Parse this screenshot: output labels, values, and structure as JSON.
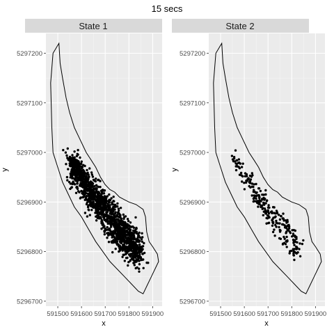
{
  "chart_data": {
    "type": "scatter",
    "title": "15 secs",
    "xlabel": "x",
    "ylabel": "y",
    "xlim": [
      591450,
      591940
    ],
    "ylim": [
      5296690,
      5297240
    ],
    "xticks": [
      591500,
      591600,
      591700,
      591800,
      591900
    ],
    "yticks": [
      5296700,
      5296800,
      5296900,
      5297000,
      5297100,
      5297200
    ],
    "grid": true,
    "boundary": [
      [
        591505,
        5297220
      ],
      [
        591480,
        5297200
      ],
      [
        591470,
        5297140
      ],
      [
        591475,
        5297050
      ],
      [
        591480,
        5297000
      ],
      [
        591500,
        5296970
      ],
      [
        591520,
        5296940
      ],
      [
        591545,
        5296915
      ],
      [
        591570,
        5296890
      ],
      [
        591600,
        5296870
      ],
      [
        591630,
        5296845
      ],
      [
        591660,
        5296820
      ],
      [
        591690,
        5296800
      ],
      [
        591720,
        5296780
      ],
      [
        591750,
        5296765
      ],
      [
        591780,
        5296750
      ],
      [
        591810,
        5296735
      ],
      [
        591840,
        5296720
      ],
      [
        591860,
        5296715
      ],
      [
        591875,
        5296730
      ],
      [
        591895,
        5296750
      ],
      [
        591915,
        5296770
      ],
      [
        591925,
        5296780
      ],
      [
        591920,
        5296795
      ],
      [
        591900,
        5296810
      ],
      [
        591885,
        5296820
      ],
      [
        591875,
        5296840
      ],
      [
        591870,
        5296870
      ],
      [
        591860,
        5296885
      ],
      [
        591830,
        5296895
      ],
      [
        591800,
        5296900
      ],
      [
        591780,
        5296905
      ],
      [
        591760,
        5296910
      ],
      [
        591740,
        5296920
      ],
      [
        591720,
        5296925
      ],
      [
        591700,
        5296935
      ],
      [
        591680,
        5296950
      ],
      [
        591660,
        5296970
      ],
      [
        591640,
        5296985
      ],
      [
        591620,
        5297000
      ],
      [
        591605,
        5297015
      ],
      [
        591590,
        5297030
      ],
      [
        591570,
        5297050
      ],
      [
        591550,
        5297080
      ],
      [
        591535,
        5297110
      ],
      [
        591520,
        5297150
      ],
      [
        591510,
        5297180
      ],
      [
        591505,
        5297220
      ]
    ],
    "panels": [
      {
        "name": "State 1",
        "track": [
          [
            591555,
            5296985
          ],
          [
            591570,
            5296975
          ],
          [
            591585,
            5296965
          ],
          [
            591600,
            5296955
          ],
          [
            591615,
            5296945
          ],
          [
            591630,
            5296935
          ],
          [
            591645,
            5296925
          ],
          [
            591660,
            5296915
          ],
          [
            591675,
            5296905
          ],
          [
            591690,
            5296895
          ],
          [
            591705,
            5296885
          ],
          [
            591720,
            5296875
          ],
          [
            591735,
            5296868
          ],
          [
            591750,
            5296860
          ],
          [
            591765,
            5296852
          ],
          [
            591780,
            5296845
          ],
          [
            591795,
            5296838
          ],
          [
            591810,
            5296830
          ],
          [
            591825,
            5296820
          ],
          [
            591840,
            5296810
          ],
          [
            591850,
            5296800
          ],
          [
            591830,
            5296790
          ],
          [
            591815,
            5296800
          ],
          [
            591800,
            5296805
          ],
          [
            591785,
            5296815
          ],
          [
            591770,
            5296825
          ],
          [
            591760,
            5296830
          ],
          [
            591750,
            5296838
          ],
          [
            591740,
            5296845
          ],
          [
            591725,
            5296855
          ],
          [
            591710,
            5296865
          ],
          [
            591690,
            5296875
          ],
          [
            591670,
            5296890
          ],
          [
            591650,
            5296900
          ],
          [
            591630,
            5296915
          ],
          [
            591615,
            5296925
          ],
          [
            591600,
            5296940
          ],
          [
            591585,
            5296955
          ],
          [
            591570,
            5296965
          ],
          [
            591560,
            5296975
          ]
        ],
        "spread": 14,
        "count": 1500
      },
      {
        "name": "State 2",
        "track": [
          [
            591555,
            5296985
          ],
          [
            591570,
            5296980
          ],
          [
            591585,
            5296970
          ],
          [
            591595,
            5296955
          ],
          [
            591610,
            5296945
          ],
          [
            591630,
            5296935
          ],
          [
            591650,
            5296925
          ],
          [
            591665,
            5296910
          ],
          [
            591680,
            5296900
          ],
          [
            591700,
            5296890
          ],
          [
            591720,
            5296880
          ],
          [
            591740,
            5296870
          ],
          [
            591760,
            5296860
          ],
          [
            591780,
            5296850
          ],
          [
            591795,
            5296840
          ],
          [
            591810,
            5296830
          ],
          [
            591820,
            5296820
          ],
          [
            591830,
            5296805
          ],
          [
            591815,
            5296790
          ],
          [
            591800,
            5296800
          ],
          [
            591780,
            5296815
          ],
          [
            591760,
            5296830
          ],
          [
            591740,
            5296845
          ],
          [
            591720,
            5296860
          ],
          [
            591700,
            5296872
          ],
          [
            591680,
            5296885
          ],
          [
            591660,
            5296900
          ],
          [
            591640,
            5296915
          ]
        ],
        "spread": 8,
        "count": 260
      }
    ]
  }
}
